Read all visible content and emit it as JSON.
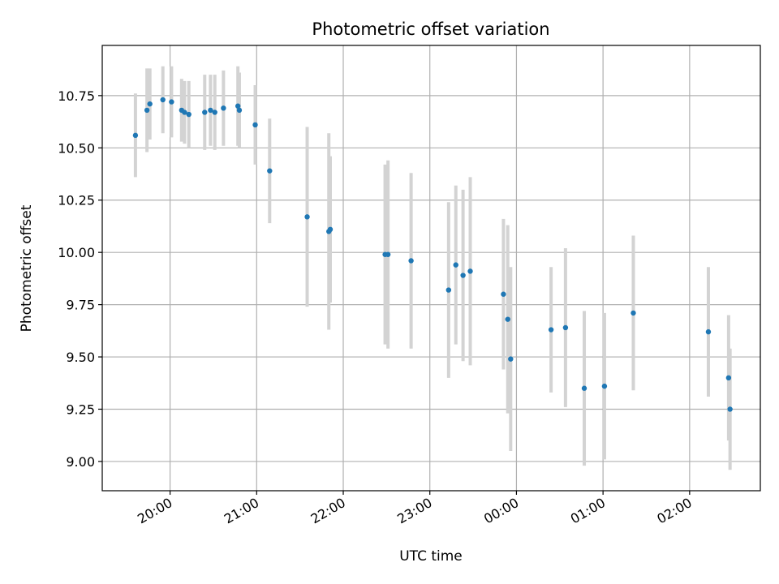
{
  "chart_data": {
    "type": "scatter",
    "title": "Photometric offset variation",
    "xlabel": "UTC time",
    "ylabel": "Photometric offset",
    "x_unit": "UTC time of night",
    "x_ticks": [
      "20:00",
      "21:00",
      "22:00",
      "23:00",
      "00:00",
      "01:00",
      "02:00"
    ],
    "xlim": [
      "19:13",
      "02:49"
    ],
    "y_ticks": [
      "9.00",
      "9.25",
      "9.50",
      "9.75",
      "10.00",
      "10.25",
      "10.50",
      "10.75"
    ],
    "ylim": [
      8.86,
      10.99
    ],
    "grid": true,
    "colors": {
      "marker": "#1f77b4",
      "errorbar": "#d3d3d3",
      "grid": "#b0b0b0"
    },
    "points": [
      {
        "x": "19:36",
        "y": 10.56,
        "err": 0.2
      },
      {
        "x": "19:44",
        "y": 10.68,
        "err": 0.2
      },
      {
        "x": "19:46",
        "y": 10.71,
        "err": 0.17
      },
      {
        "x": "19:55",
        "y": 10.73,
        "err": 0.16
      },
      {
        "x": "20:01",
        "y": 10.72,
        "err": 0.17
      },
      {
        "x": "20:08",
        "y": 10.68,
        "err": 0.15
      },
      {
        "x": "20:10",
        "y": 10.67,
        "err": 0.15
      },
      {
        "x": "20:13",
        "y": 10.66,
        "err": 0.16
      },
      {
        "x": "20:24",
        "y": 10.67,
        "err": 0.18
      },
      {
        "x": "20:28",
        "y": 10.68,
        "err": 0.17
      },
      {
        "x": "20:31",
        "y": 10.67,
        "err": 0.18
      },
      {
        "x": "20:37",
        "y": 10.69,
        "err": 0.18
      },
      {
        "x": "20:47",
        "y": 10.7,
        "err": 0.19
      },
      {
        "x": "20:48",
        "y": 10.68,
        "err": 0.18
      },
      {
        "x": "20:59",
        "y": 10.61,
        "err": 0.19
      },
      {
        "x": "21:09",
        "y": 10.39,
        "err": 0.25
      },
      {
        "x": "21:35",
        "y": 10.17,
        "err": 0.43
      },
      {
        "x": "21:50",
        "y": 10.1,
        "err": 0.47
      },
      {
        "x": "21:51",
        "y": 10.11,
        "err": 0.35
      },
      {
        "x": "22:29",
        "y": 9.99,
        "err": 0.43
      },
      {
        "x": "22:31",
        "y": 9.99,
        "err": 0.45
      },
      {
        "x": "22:47",
        "y": 9.96,
        "err": 0.42
      },
      {
        "x": "23:13",
        "y": 9.82,
        "err": 0.42
      },
      {
        "x": "23:18",
        "y": 9.94,
        "err": 0.38
      },
      {
        "x": "23:23",
        "y": 9.89,
        "err": 0.41
      },
      {
        "x": "23:28",
        "y": 9.91,
        "err": 0.45
      },
      {
        "x": "23:51",
        "y": 9.8,
        "err": 0.36
      },
      {
        "x": "23:54",
        "y": 9.68,
        "err": 0.45
      },
      {
        "x": "23:56",
        "y": 9.49,
        "err": 0.44
      },
      {
        "x": "00:24",
        "y": 9.63,
        "err": 0.3
      },
      {
        "x": "00:34",
        "y": 9.64,
        "err": 0.38
      },
      {
        "x": "00:47",
        "y": 9.35,
        "err": 0.37
      },
      {
        "x": "01:01",
        "y": 9.36,
        "err": 0.35
      },
      {
        "x": "01:21",
        "y": 9.71,
        "err": 0.37
      },
      {
        "x": "02:13",
        "y": 9.62,
        "err": 0.31
      },
      {
        "x": "02:27",
        "y": 9.4,
        "err": 0.3
      },
      {
        "x": "02:28",
        "y": 9.25,
        "err": 0.29
      }
    ]
  }
}
